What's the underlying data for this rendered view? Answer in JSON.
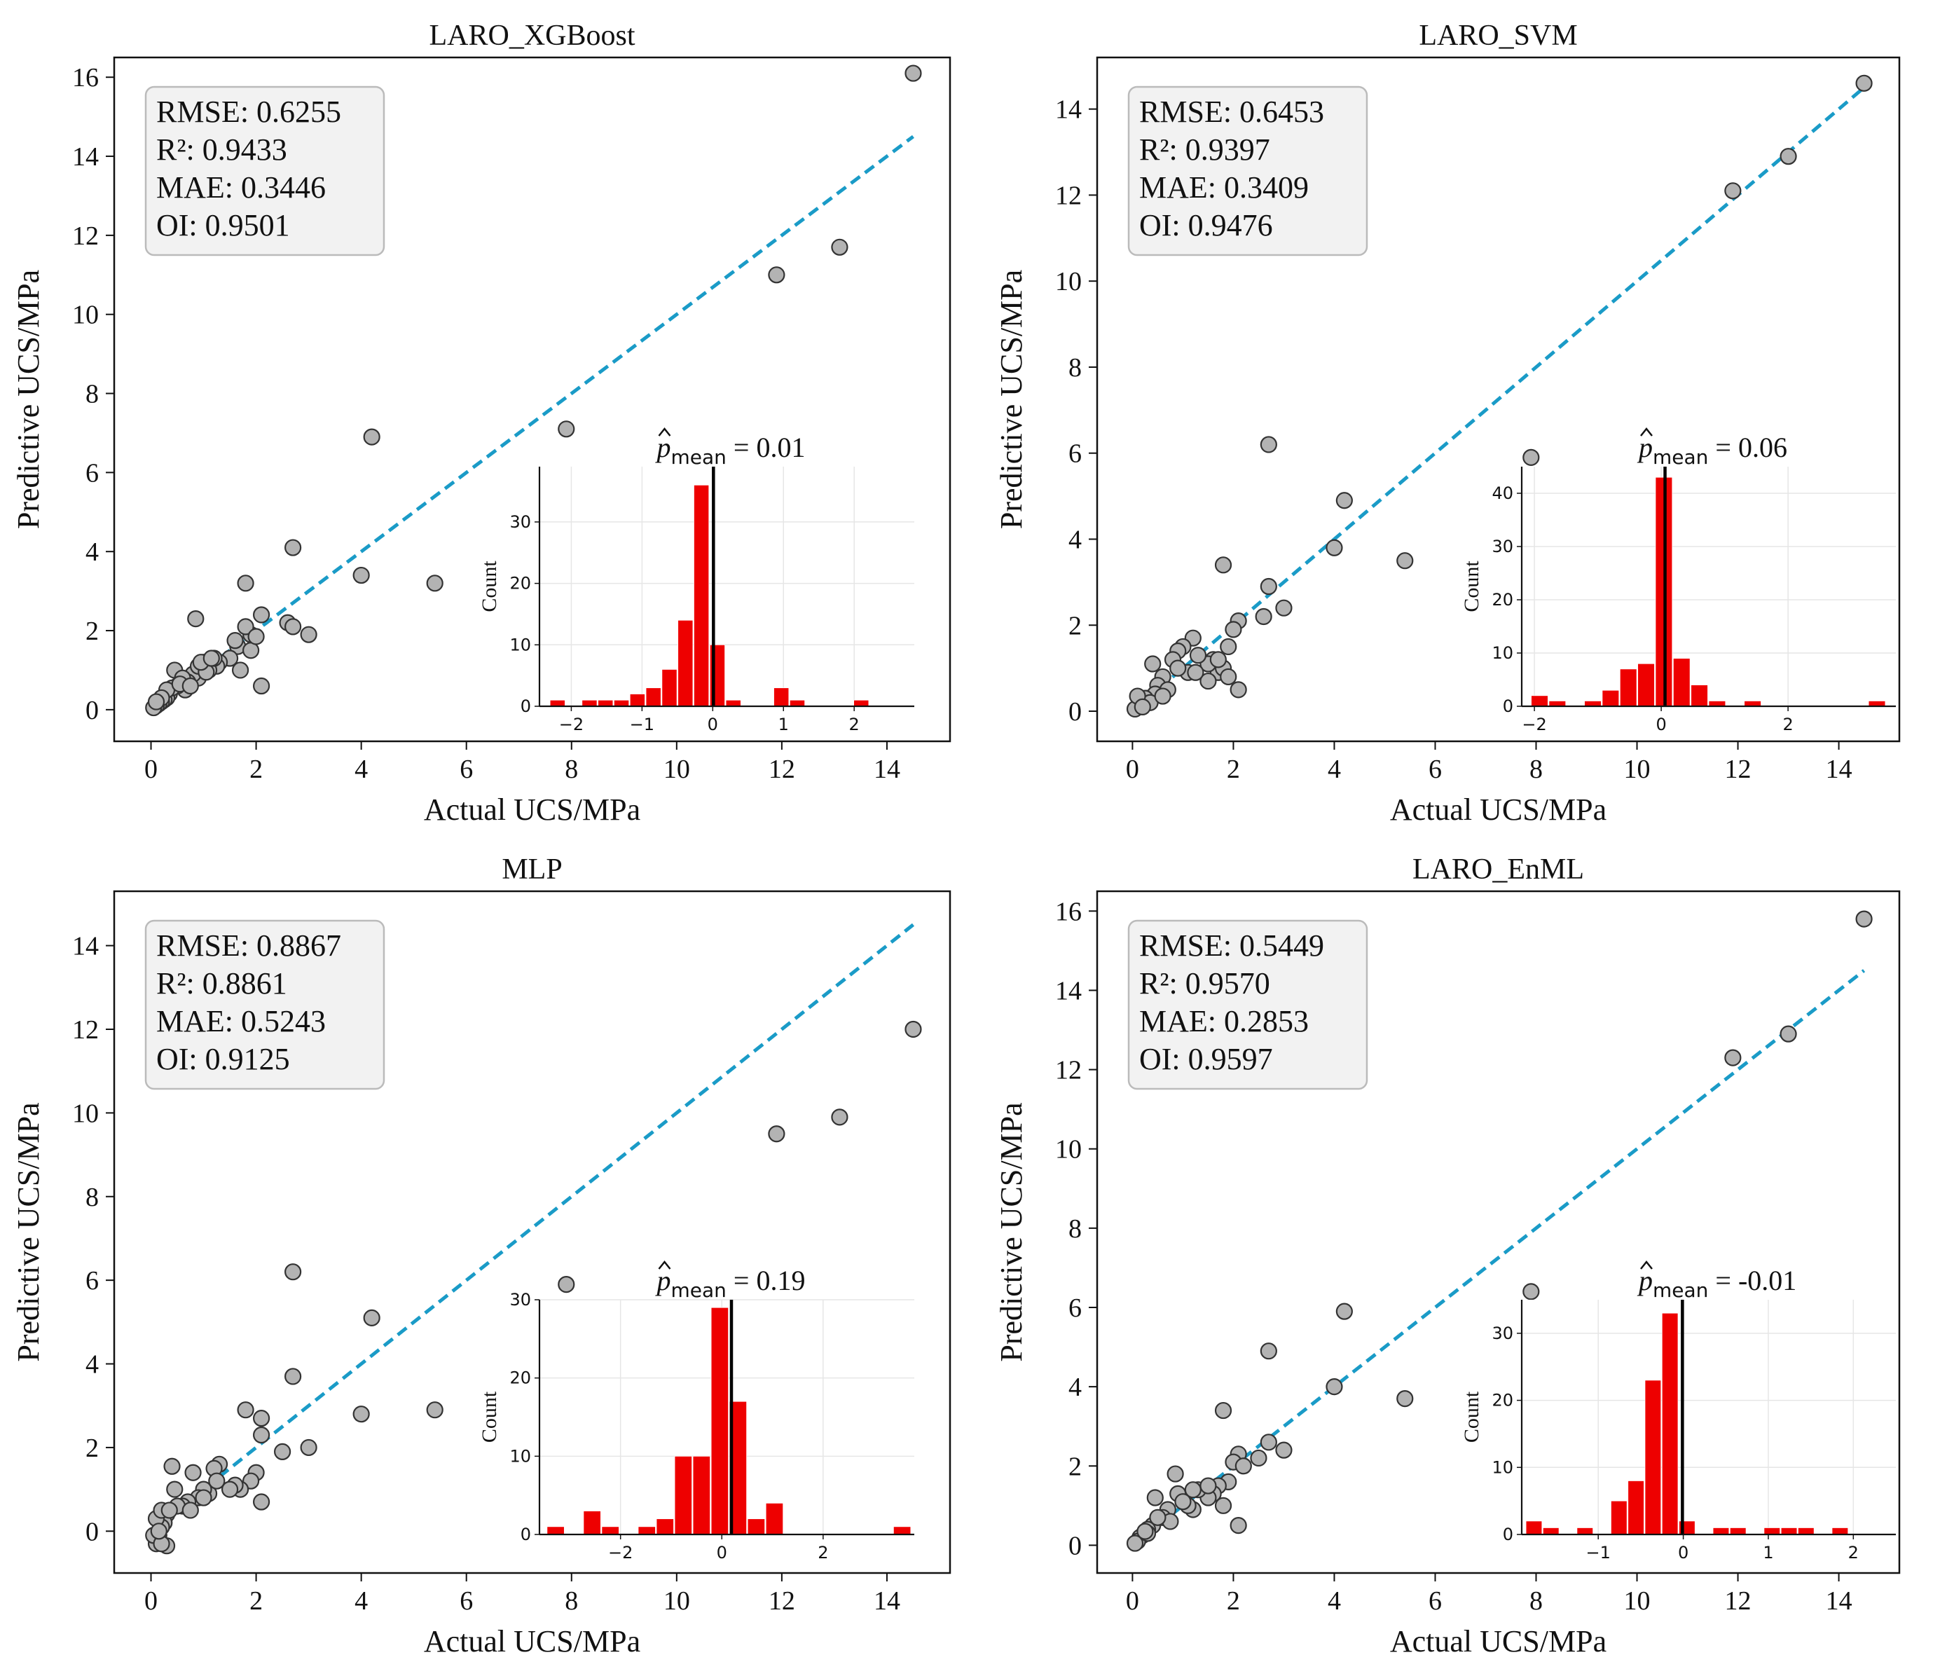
{
  "figure": {
    "x_label": "Actual UCS/MPa",
    "y_label": "Predictive UCS/MPa"
  },
  "colors": {
    "points": "#b3b3b3",
    "point_edge": "#333333",
    "fit_line": "#1a9bc7",
    "hist_bars": "#ee0000",
    "metrics_box_fill": "#f2f2f2",
    "metrics_box_edge": "#bbbbbb"
  },
  "chart_data": [
    {
      "type": "scatter",
      "title": "LARO_XGBoost",
      "xlabel": "Actual UCS/MPa",
      "ylabel": "Predictive UCS/MPa",
      "xlim": [
        -0.7,
        15.2
      ],
      "ylim": [
        -0.8,
        16.5
      ],
      "xticks": [
        0,
        2,
        4,
        6,
        8,
        10,
        12,
        14
      ],
      "yticks": [
        0,
        2,
        4,
        6,
        8,
        10,
        12,
        14,
        16
      ],
      "metrics": [
        "RMSE: 0.6255",
        "R²: 0.9433",
        "MAE: 0.3446",
        "OI: 0.9501"
      ],
      "fit_line": {
        "x": [
          0,
          14.5
        ],
        "y": [
          0,
          14.5
        ]
      },
      "points": {
        "x": [
          14.5,
          11.9,
          13.1,
          4.2,
          7.9,
          2.7,
          4.0,
          5.4,
          1.8,
          2.6,
          2.7,
          3.0,
          2.1,
          0.85,
          2.1,
          1.9,
          1.8,
          1.65,
          1.7,
          1.9,
          1.5,
          1.3,
          1.25,
          1.1,
          1.0,
          0.9,
          0.8,
          0.7,
          0.65,
          0.5,
          0.45,
          0.35,
          0.3,
          0.25,
          0.2,
          0.15,
          0.1,
          0.05,
          0.4,
          0.6,
          0.9,
          1.2,
          0.3,
          0.55,
          0.75,
          1.05,
          1.6,
          2.0,
          0.95,
          0.2,
          0.1,
          1.15
        ],
        "y": [
          16.1,
          11.0,
          11.7,
          6.9,
          7.1,
          4.1,
          3.4,
          3.2,
          3.2,
          2.2,
          2.1,
          1.9,
          0.6,
          2.3,
          2.4,
          1.9,
          2.1,
          1.6,
          1.0,
          1.5,
          1.3,
          1.2,
          1.1,
          1.0,
          1.2,
          0.8,
          0.9,
          0.7,
          0.5,
          0.6,
          1.0,
          0.4,
          0.3,
          0.25,
          0.2,
          0.15,
          0.1,
          0.05,
          0.55,
          0.8,
          1.1,
          1.3,
          0.5,
          0.65,
          0.6,
          0.95,
          1.75,
          1.85,
          1.2,
          0.3,
          0.2,
          1.3
        ]
      },
      "inset": {
        "type": "bar",
        "title_suffix": "= 0.01",
        "ylabel": "Count",
        "xlim": [
          -2.45,
          2.85
        ],
        "ylim": [
          0,
          39
        ],
        "xticks": [
          -2,
          -1,
          0,
          1,
          2
        ],
        "xtick_labels": [
          "−2",
          "−1",
          "0",
          "1",
          "2"
        ],
        "yticks": [
          0,
          10,
          20,
          30
        ],
        "bin_start": -2.3,
        "bin_width": 0.226,
        "counts": [
          1,
          0,
          1,
          1,
          1,
          2,
          3,
          6,
          14,
          36,
          10,
          1,
          0,
          0,
          3,
          1,
          0,
          0,
          0,
          1
        ],
        "mean": 0.01
      }
    },
    {
      "type": "scatter",
      "title": "LARO_SVM",
      "xlabel": "Actual UCS/MPa",
      "ylabel": "Predictive UCS/MPa",
      "xlim": [
        -0.7,
        15.2
      ],
      "ylim": [
        -0.7,
        15.2
      ],
      "xticks": [
        0,
        2,
        4,
        6,
        8,
        10,
        12,
        14
      ],
      "yticks": [
        0,
        2,
        4,
        6,
        8,
        10,
        12,
        14
      ],
      "metrics": [
        "RMSE: 0.6453",
        "R²: 0.9397",
        "MAE: 0.3409",
        "OI: 0.9476"
      ],
      "fit_line": {
        "x": [
          0,
          14.5
        ],
        "y": [
          0,
          14.5
        ]
      },
      "points": {
        "x": [
          14.5,
          11.9,
          13.0,
          7.9,
          2.7,
          4.2,
          4.0,
          5.4,
          1.8,
          2.7,
          3.0,
          2.6,
          2.1,
          2.0,
          1.9,
          2.1,
          1.7,
          1.8,
          1.6,
          1.5,
          1.3,
          1.2,
          1.0,
          0.9,
          0.8,
          0.6,
          0.5,
          0.4,
          0.3,
          0.2,
          0.15,
          0.1,
          0.05,
          1.9,
          1.7,
          1.5,
          1.1,
          0.9,
          0.7,
          0.45,
          0.25,
          0.35,
          0.6,
          1.25,
          0.1,
          0.2
        ],
        "y": [
          14.6,
          12.1,
          12.9,
          5.9,
          6.2,
          4.9,
          3.8,
          3.5,
          3.4,
          2.9,
          2.4,
          2.2,
          2.1,
          1.9,
          1.5,
          0.5,
          0.9,
          1.0,
          1.2,
          1.1,
          1.3,
          1.7,
          1.5,
          1.4,
          1.2,
          0.8,
          0.6,
          1.1,
          0.3,
          0.2,
          0.15,
          0.1,
          0.05,
          0.8,
          1.2,
          0.7,
          0.9,
          1.0,
          0.5,
          0.4,
          0.3,
          0.2,
          0.35,
          0.9,
          0.35,
          0.1
        ]
      },
      "inset": {
        "type": "bar",
        "title_suffix": "= 0.06",
        "ylabel": "Count",
        "xlim": [
          -2.2,
          3.7
        ],
        "ylim": [
          0,
          45
        ],
        "xticks": [
          -2,
          0,
          2
        ],
        "xtick_labels": [
          "−2",
          "0",
          "2"
        ],
        "yticks": [
          0,
          10,
          20,
          30,
          40
        ],
        "bin_start": -2.05,
        "bin_width": 0.28,
        "counts": [
          2,
          1,
          0,
          1,
          3,
          7,
          8,
          43,
          9,
          4,
          1,
          0,
          1,
          0,
          0,
          0,
          0,
          0,
          0,
          1
        ],
        "mean": 0.06
      }
    },
    {
      "type": "scatter",
      "title": "MLP",
      "xlabel": "Actual UCS/MPa",
      "ylabel": "Predictive UCS/MPa",
      "xlim": [
        -0.7,
        15.2
      ],
      "ylim": [
        -1.0,
        15.3
      ],
      "xticks": [
        0,
        2,
        4,
        6,
        8,
        10,
        12,
        14
      ],
      "yticks": [
        0,
        2,
        4,
        6,
        8,
        10,
        12,
        14
      ],
      "metrics": [
        "RMSE: 0.8867",
        "R²: 0.8861",
        "MAE: 0.5243",
        "OI: 0.9125"
      ],
      "fit_line": {
        "x": [
          0,
          14.5
        ],
        "y": [
          0,
          14.5
        ]
      },
      "points": {
        "x": [
          14.5,
          11.9,
          13.1,
          7.9,
          2.7,
          4.2,
          2.7,
          4.0,
          5.4,
          3.0,
          2.5,
          1.8,
          2.1,
          2.1,
          2.0,
          1.9,
          1.7,
          1.6,
          1.5,
          1.3,
          1.2,
          1.1,
          1.0,
          0.9,
          0.8,
          0.7,
          0.6,
          0.45,
          0.4,
          0.3,
          0.25,
          0.2,
          0.15,
          0.1,
          0.05,
          0.1,
          0.2,
          0.3,
          0.5,
          0.75,
          1.0,
          1.25,
          0.2,
          0.15,
          2.1,
          0.35
        ],
        "y": [
          12.0,
          9.5,
          9.9,
          5.9,
          6.2,
          5.1,
          3.7,
          2.8,
          2.9,
          2.0,
          1.9,
          2.9,
          2.7,
          0.7,
          1.4,
          1.2,
          1.0,
          1.1,
          1.0,
          1.6,
          1.5,
          0.9,
          1.0,
          0.8,
          1.4,
          0.7,
          0.6,
          1.0,
          1.55,
          0.4,
          0.2,
          0.1,
          -0.1,
          -0.3,
          -0.1,
          0.3,
          0.5,
          -0.35,
          0.6,
          0.5,
          0.8,
          1.2,
          -0.3,
          0.0,
          2.3,
          0.5
        ]
      },
      "inset": {
        "type": "bar",
        "title_suffix": "= 0.19",
        "ylabel": "Count",
        "xlim": [
          -3.6,
          3.8
        ],
        "ylim": [
          0,
          30
        ],
        "xticks": [
          -2,
          0,
          2
        ],
        "xtick_labels": [
          "−2",
          "0",
          "2"
        ],
        "yticks": [
          0,
          10,
          20,
          30
        ],
        "bin_start": -3.45,
        "bin_width": 0.36,
        "counts": [
          1,
          0,
          3,
          1,
          0,
          1,
          2,
          10,
          10,
          29,
          17,
          2,
          4,
          0,
          0,
          0,
          0,
          0,
          0,
          1
        ],
        "mean": 0.19
      }
    },
    {
      "type": "scatter",
      "title": "LARO_EnML",
      "xlabel": "Actual UCS/MPa",
      "ylabel": "Predictive UCS/MPa",
      "xlim": [
        -0.7,
        15.2
      ],
      "ylim": [
        -0.7,
        16.5
      ],
      "xticks": [
        0,
        2,
        4,
        6,
        8,
        10,
        12,
        14
      ],
      "yticks": [
        0,
        2,
        4,
        6,
        8,
        10,
        12,
        14,
        16
      ],
      "metrics": [
        "RMSE: 0.5449",
        "R²: 0.9570",
        "MAE: 0.2853",
        "OI: 0.9597"
      ],
      "fit_line": {
        "x": [
          0,
          14.5
        ],
        "y": [
          0,
          14.5
        ]
      },
      "points": {
        "x": [
          14.5,
          11.9,
          13.0,
          7.9,
          4.2,
          2.7,
          4.0,
          5.4,
          1.8,
          2.7,
          3.0,
          2.5,
          2.1,
          2.0,
          1.9,
          2.2,
          2.1,
          1.7,
          1.6,
          1.5,
          1.3,
          1.2,
          1.1,
          0.9,
          0.85,
          0.7,
          0.6,
          0.45,
          0.4,
          0.3,
          0.2,
          0.15,
          0.1,
          0.05,
          1.8,
          1.5,
          1.0,
          0.75,
          0.5,
          0.3,
          0.25,
          1.2
        ],
        "y": [
          15.8,
          12.3,
          12.9,
          6.4,
          5.9,
          4.9,
          4.0,
          3.7,
          3.4,
          2.6,
          2.4,
          2.2,
          2.3,
          2.1,
          1.6,
          2.0,
          0.5,
          1.5,
          1.3,
          1.2,
          1.4,
          0.9,
          1.0,
          1.3,
          1.8,
          0.9,
          0.7,
          1.2,
          0.5,
          0.4,
          0.25,
          0.2,
          0.1,
          0.05,
          1.0,
          1.5,
          1.1,
          0.6,
          0.7,
          0.3,
          0.35,
          1.4
        ]
      },
      "inset": {
        "type": "bar",
        "title_suffix": "= -0.01",
        "ylabel": "Count",
        "xlim": [
          -1.9,
          2.5
        ],
        "ylim": [
          0,
          35
        ],
        "xticks": [
          -1,
          0,
          1,
          2
        ],
        "xtick_labels": [
          "−1",
          "0",
          "1",
          "2"
        ],
        "yticks": [
          0,
          10,
          20,
          30
        ],
        "bin_start": -1.85,
        "bin_width": 0.2,
        "counts": [
          2,
          1,
          0,
          1,
          0,
          5,
          8,
          23,
          33,
          2,
          0,
          1,
          1,
          0,
          1,
          1,
          1,
          0,
          1,
          0
        ],
        "mean": -0.01
      }
    }
  ]
}
